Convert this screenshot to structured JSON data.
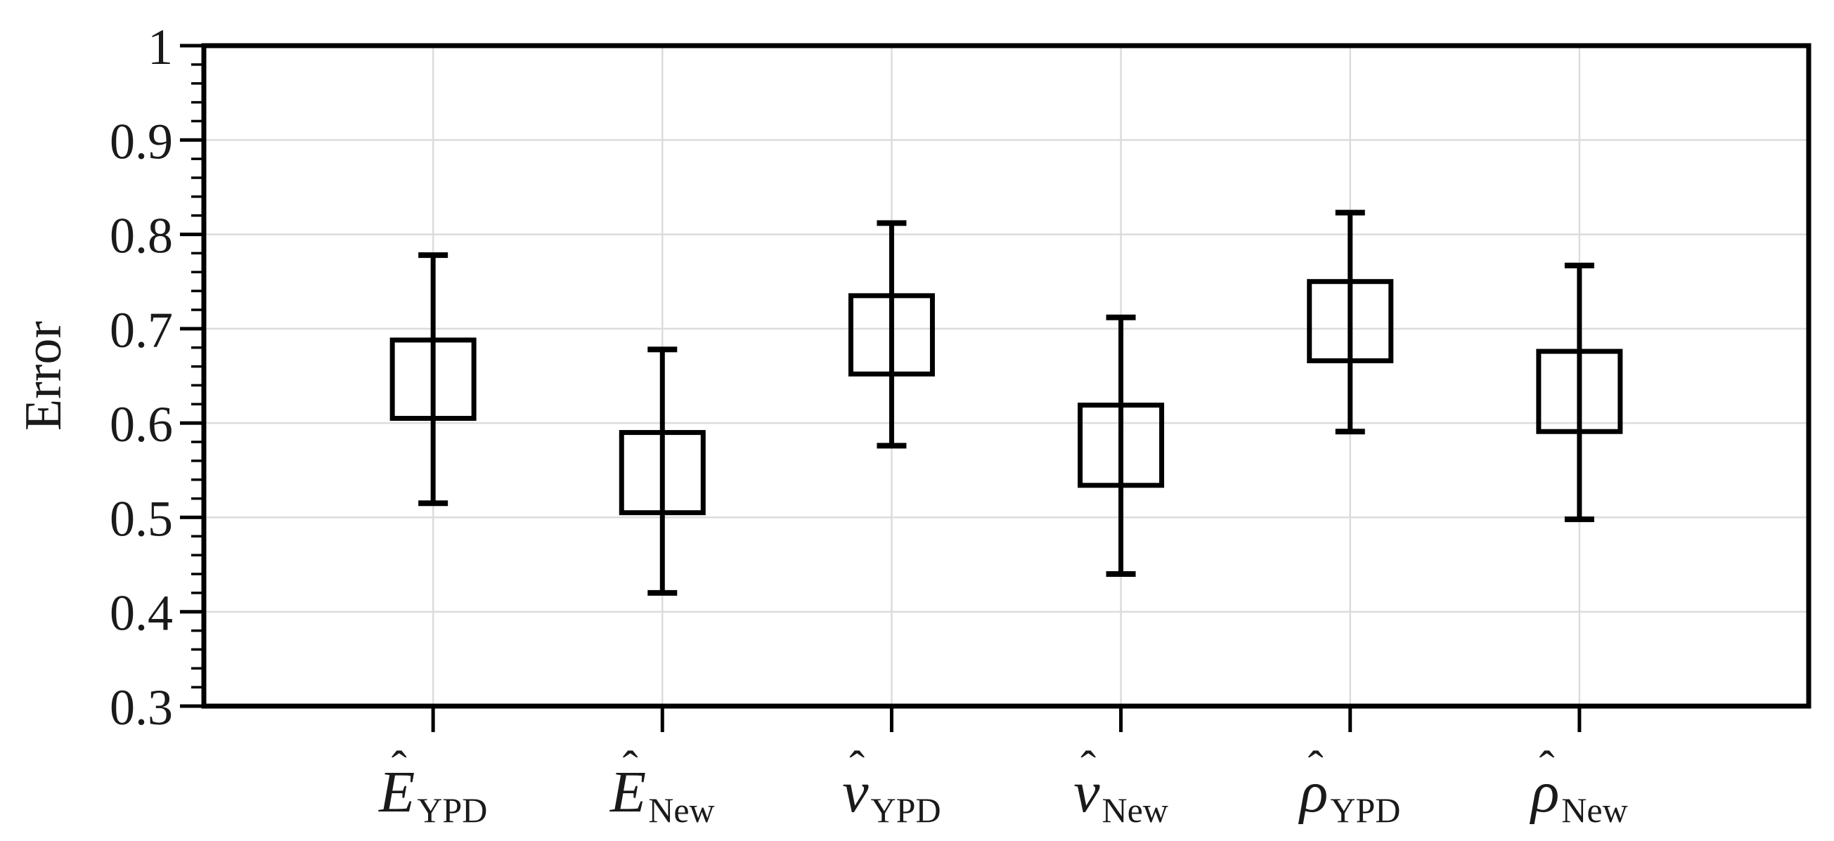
{
  "figure": {
    "background": "#ffffff"
  },
  "chart_data": {
    "type": "box",
    "title": "",
    "xlabel": "",
    "ylabel": "Error",
    "ylim": [
      0.3,
      1.0
    ],
    "grid": true,
    "legend": null,
    "y_major_tick_step": 0.1,
    "y_minor_tick_step": 0.02,
    "y_ticks": [
      {
        "v": 1.0,
        "label": "1"
      },
      {
        "v": 0.9,
        "label": "0.9"
      },
      {
        "v": 0.8,
        "label": "0.8"
      },
      {
        "v": 0.7,
        "label": "0.7"
      },
      {
        "v": 0.6,
        "label": "0.6"
      },
      {
        "v": 0.5,
        "label": "0.5"
      },
      {
        "v": 0.4,
        "label": "0.4"
      },
      {
        "v": 0.3,
        "label": "0.3"
      }
    ],
    "hat_accent": "ˆ",
    "categories": [
      {
        "id": "E_YPD",
        "base": "E",
        "subscript": "YPD"
      },
      {
        "id": "E_New",
        "base": "E",
        "subscript": "New"
      },
      {
        "id": "v_YPD",
        "base": "v",
        "subscript": "YPD"
      },
      {
        "id": "v_New",
        "base": "v",
        "subscript": "New"
      },
      {
        "id": "rho_YPD",
        "base": "ρ",
        "subscript": "YPD"
      },
      {
        "id": "rho_New",
        "base": "ρ",
        "subscript": "New"
      }
    ],
    "series": [
      {
        "name": "Ê_YPD",
        "whisker_low": 0.515,
        "box_low": 0.605,
        "box_high": 0.688,
        "whisker_high": 0.778
      },
      {
        "name": "Ê_New",
        "whisker_low": 0.42,
        "box_low": 0.505,
        "box_high": 0.59,
        "whisker_high": 0.678
      },
      {
        "name": "v̂_YPD",
        "whisker_low": 0.576,
        "box_low": 0.652,
        "box_high": 0.735,
        "whisker_high": 0.812
      },
      {
        "name": "v̂_New",
        "whisker_low": 0.44,
        "box_low": 0.534,
        "box_high": 0.619,
        "whisker_high": 0.712
      },
      {
        "name": "ρ̂_YPD",
        "whisker_low": 0.591,
        "box_low": 0.666,
        "box_high": 0.75,
        "whisker_high": 0.823
      },
      {
        "name": "ρ̂_New",
        "whisker_low": 0.498,
        "box_low": 0.591,
        "box_high": 0.676,
        "whisker_high": 0.767
      }
    ],
    "colors": {
      "line": "#000000",
      "grid": "#dcdcdc",
      "text": "#1a1a1a",
      "background": "#ffffff"
    }
  }
}
